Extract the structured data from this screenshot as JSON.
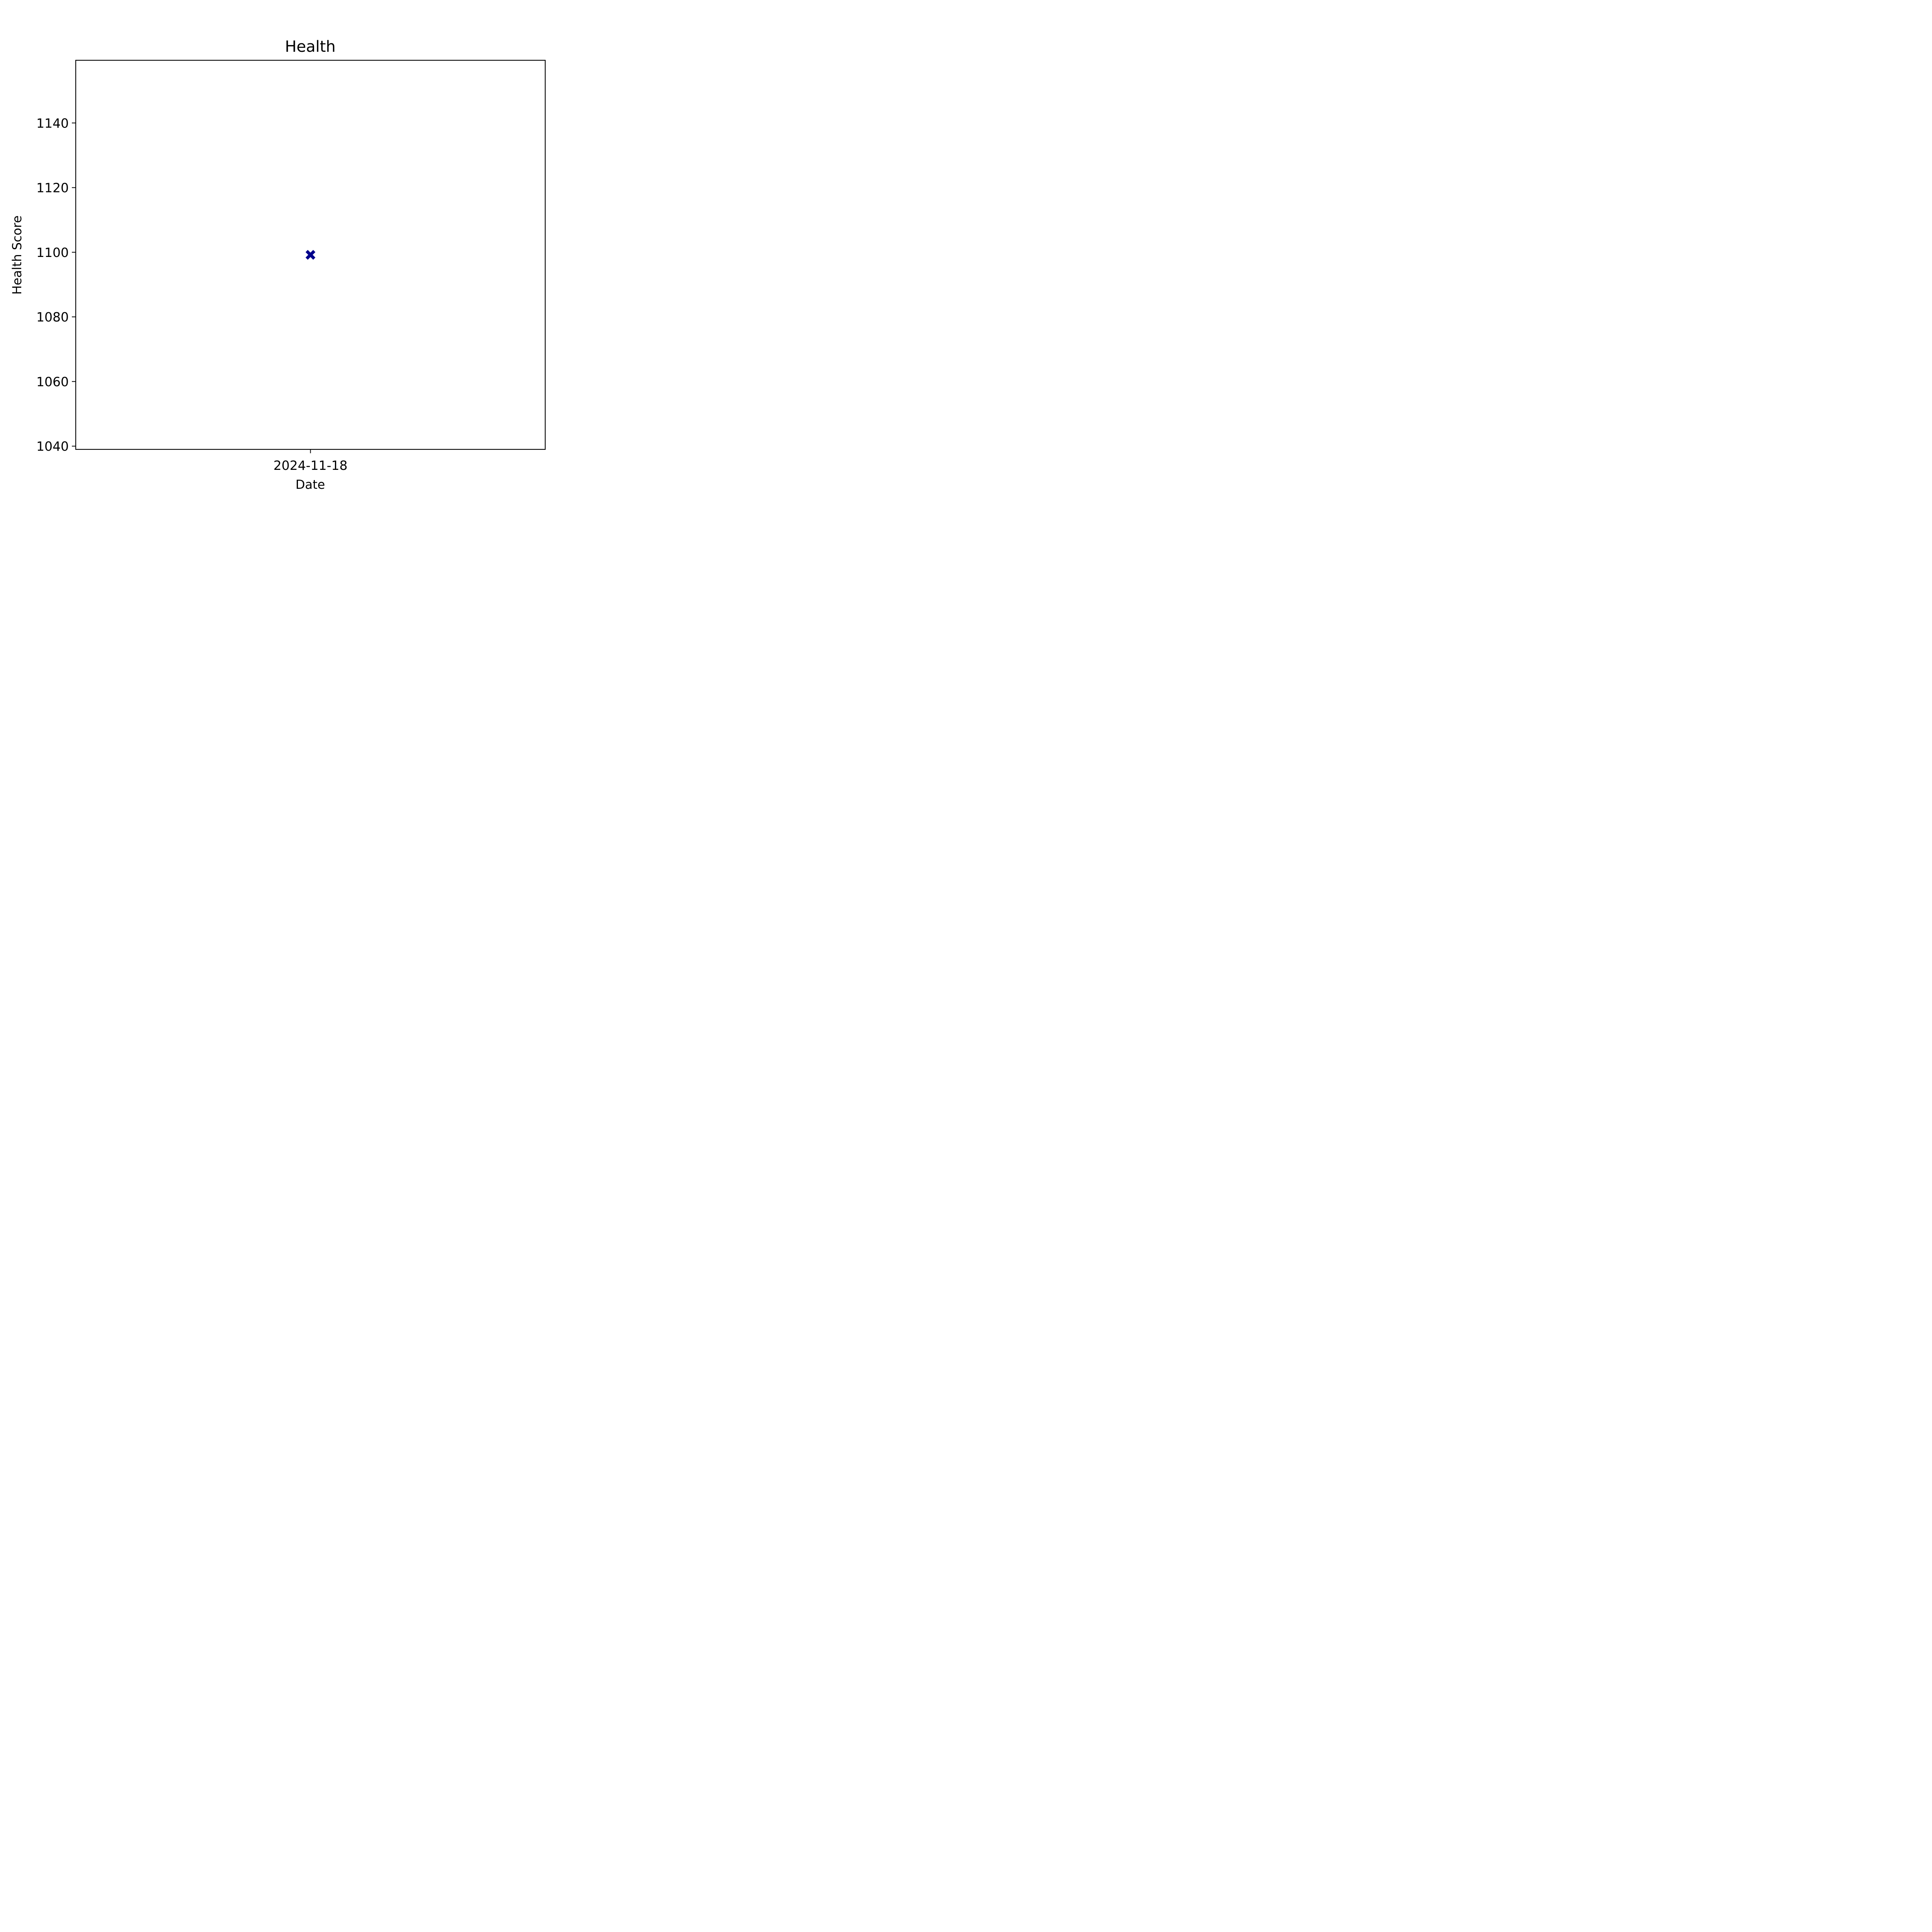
{
  "chart_data": {
    "type": "scatter",
    "title": "Health",
    "xlabel": "Date",
    "ylabel": "Health Score",
    "x": [
      "2024-11-18"
    ],
    "y": [
      1099.2
    ],
    "x_ticks": [
      "2024-11-18"
    ],
    "y_ticks": [
      1040,
      1060,
      1080,
      1100,
      1120,
      1140
    ],
    "ylim": [
      1039,
      1159.4
    ],
    "marker": "filled-x",
    "marker_color": "#00008b",
    "grid": false,
    "legend": "none"
  }
}
